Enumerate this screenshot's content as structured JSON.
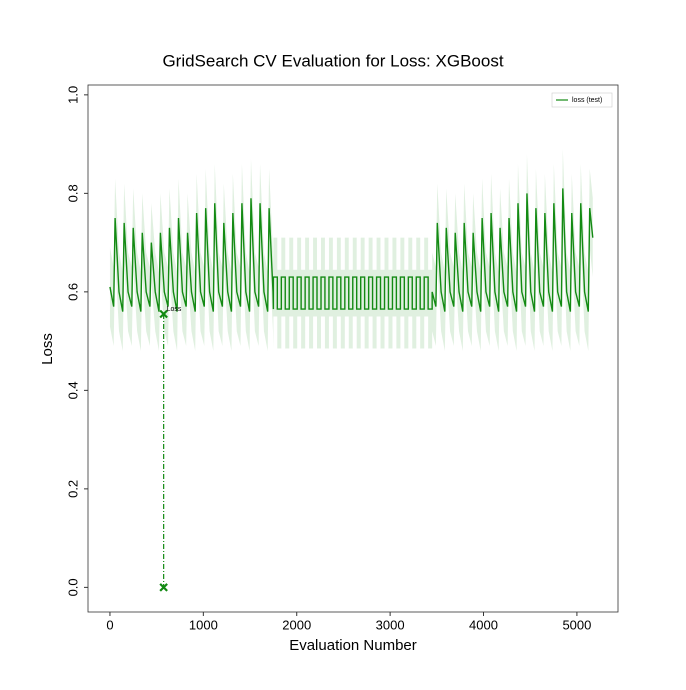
{
  "chart_data": {
    "type": "line",
    "title": "GridSearch CV Evaluation for Loss: XGBoost",
    "x_label": "Evaluation Number",
    "y_label": "Loss",
    "xlim": [
      -235,
      5440
    ],
    "ylim": [
      -0.05,
      1.02
    ],
    "xticks": [
      0,
      1000,
      2000,
      3000,
      4000,
      5000
    ],
    "yticks": [
      {
        "value": 0,
        "label": "0.0"
      },
      0.2,
      0.4,
      0.6,
      0.8,
      {
        "value": 1,
        "label": "1.0"
      }
    ],
    "legend": "upper right",
    "x": [
      0,
      40,
      55,
      97,
      137,
      152,
      194,
      234,
      249,
      291,
      331,
      346,
      388,
      428,
      443,
      485,
      525,
      540,
      582,
      622,
      637,
      679,
      719,
      734,
      776,
      816,
      831,
      873,
      913,
      928,
      970,
      1010,
      1025,
      1067,
      1107,
      1122,
      1164,
      1204,
      1219,
      1261,
      1301,
      1316,
      1358,
      1398,
      1413,
      1455,
      1495,
      1510,
      1552,
      1592,
      1607,
      1649,
      1689,
      1704,
      1746,
      1750,
      1750,
      1792,
      1792,
      1835,
      1835,
      1877,
      1877,
      1920,
      1920,
      1962,
      1962,
      2005,
      2005,
      2047,
      2047,
      2090,
      2090,
      2132,
      2132,
      2175,
      2175,
      2217,
      2217,
      2260,
      2260,
      2302,
      2302,
      2345,
      2345,
      2387,
      2387,
      2430,
      2430,
      2472,
      2472,
      2515,
      2515,
      2557,
      2557,
      2600,
      2600,
      2642,
      2642,
      2685,
      2685,
      2727,
      2727,
      2770,
      2770,
      2812,
      2812,
      2855,
      2855,
      2897,
      2897,
      2940,
      2940,
      2982,
      2982,
      3025,
      3025,
      3067,
      3067,
      3110,
      3110,
      3152,
      3152,
      3195,
      3195,
      3237,
      3237,
      3280,
      3280,
      3322,
      3322,
      3365,
      3365,
      3407,
      3407,
      3450,
      3450,
      3490,
      3505,
      3546,
      3586,
      3601,
      3642,
      3682,
      3697,
      3738,
      3778,
      3793,
      3834,
      3874,
      3889,
      3930,
      3970,
      3985,
      4026,
      4066,
      4081,
      4122,
      4162,
      4177,
      4218,
      4258,
      4273,
      4314,
      4354,
      4369,
      4410,
      4450,
      4465,
      4506,
      4546,
      4561,
      4602,
      4642,
      4657,
      4698,
      4738,
      4753,
      4794,
      4834,
      4849,
      4890,
      4930,
      4945,
      4986,
      5026,
      5041,
      5082,
      5122,
      5137,
      5170
    ],
    "series": [
      {
        "name": "loss (test)",
        "color": "#138a13",
        "band": 0.08,
        "values": [
          0.61,
          0.57,
          0.75,
          0.6,
          0.56,
          0.74,
          0.6,
          0.57,
          0.73,
          0.6,
          0.56,
          0.72,
          0.6,
          0.57,
          0.7,
          0.6,
          0.56,
          0.72,
          0.6,
          0.57,
          0.73,
          0.6,
          0.56,
          0.75,
          0.6,
          0.57,
          0.72,
          0.6,
          0.56,
          0.76,
          0.6,
          0.57,
          0.77,
          0.6,
          0.56,
          0.78,
          0.6,
          0.57,
          0.74,
          0.6,
          0.56,
          0.76,
          0.6,
          0.57,
          0.78,
          0.6,
          0.56,
          0.79,
          0.6,
          0.57,
          0.78,
          0.6,
          0.56,
          0.77,
          0.6,
          0.565,
          0.63,
          0.63,
          0.565,
          0.565,
          0.63,
          0.63,
          0.565,
          0.565,
          0.63,
          0.63,
          0.565,
          0.565,
          0.63,
          0.63,
          0.565,
          0.565,
          0.63,
          0.63,
          0.565,
          0.565,
          0.63,
          0.63,
          0.565,
          0.565,
          0.63,
          0.63,
          0.565,
          0.565,
          0.63,
          0.63,
          0.565,
          0.565,
          0.63,
          0.63,
          0.565,
          0.565,
          0.63,
          0.63,
          0.565,
          0.565,
          0.63,
          0.63,
          0.565,
          0.565,
          0.63,
          0.63,
          0.565,
          0.565,
          0.63,
          0.63,
          0.565,
          0.565,
          0.63,
          0.63,
          0.565,
          0.565,
          0.63,
          0.63,
          0.565,
          0.565,
          0.63,
          0.63,
          0.565,
          0.565,
          0.63,
          0.63,
          0.565,
          0.565,
          0.63,
          0.63,
          0.565,
          0.565,
          0.63,
          0.63,
          0.565,
          0.565,
          0.63,
          0.63,
          0.565,
          0.565,
          0.6,
          0.57,
          0.74,
          0.6,
          0.56,
          0.73,
          0.6,
          0.57,
          0.72,
          0.6,
          0.56,
          0.74,
          0.6,
          0.57,
          0.72,
          0.6,
          0.56,
          0.75,
          0.6,
          0.57,
          0.76,
          0.6,
          0.56,
          0.73,
          0.6,
          0.57,
          0.75,
          0.6,
          0.56,
          0.78,
          0.6,
          0.57,
          0.8,
          0.6,
          0.56,
          0.77,
          0.6,
          0.57,
          0.76,
          0.6,
          0.56,
          0.78,
          0.6,
          0.57,
          0.81,
          0.6,
          0.56,
          0.76,
          0.6,
          0.57,
          0.78,
          0.6,
          0.56,
          0.77,
          0.71
        ]
      }
    ],
    "best": {
      "label": "Loss",
      "x": 575,
      "values": [
        0.555,
        0
      ]
    }
  }
}
